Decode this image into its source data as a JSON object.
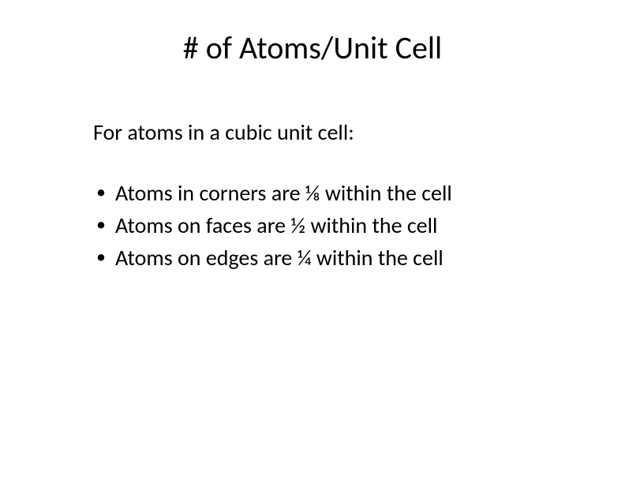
{
  "title": "# of Atoms/Unit Cell",
  "intro": "For atoms in a cubic unit cell:",
  "bullets": [
    "Atoms in corners are ⅛ within the cell",
    "Atoms on faces are ½ within the cell",
    "Atoms on edges are ¼ within the cell"
  ],
  "colors": {
    "background": "#ffffff",
    "text": "#000000"
  },
  "fonts": {
    "title_size_pt": 40,
    "body_size_pt": 28,
    "family": "Calibri"
  }
}
